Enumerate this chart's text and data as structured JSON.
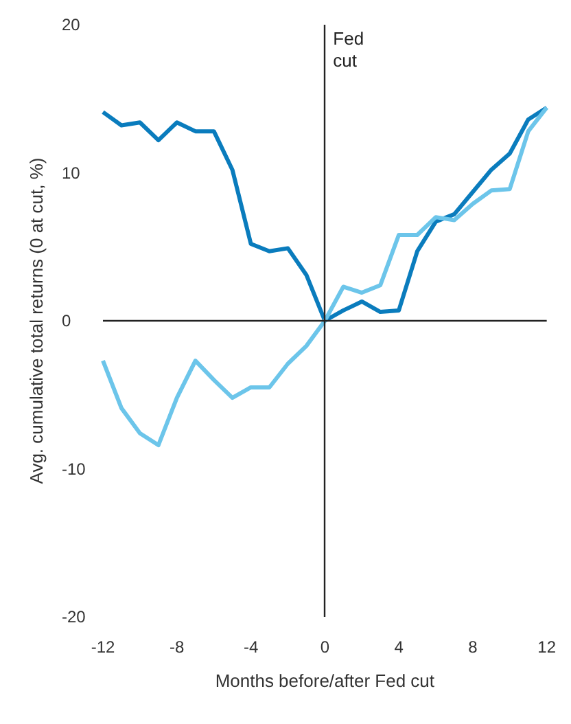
{
  "chart_data": {
    "type": "line",
    "xlabel": "Months before/after Fed cut",
    "ylabel": "Avg. cumulative total returns (0 at cut, %)",
    "x": [
      -12,
      -11,
      -10,
      -9,
      -8,
      -7,
      -6,
      -5,
      -4,
      -3,
      -2,
      -1,
      0,
      1,
      2,
      3,
      4,
      5,
      6,
      7,
      8,
      9,
      10,
      11,
      12
    ],
    "series": [
      {
        "color": "#0a7cbd",
        "values": [
          14.1,
          13.2,
          13.4,
          12.2,
          13.4,
          12.8,
          12.8,
          10.2,
          5.2,
          4.7,
          4.9,
          3.1,
          0,
          0.7,
          1.3,
          0.6,
          0.7,
          4.7,
          6.7,
          7.2,
          8.7,
          10.2,
          11.3,
          13.6,
          14.4
        ]
      },
      {
        "color": "#6cc5ea",
        "values": [
          -2.7,
          -5.9,
          -7.6,
          -8.4,
          -5.2,
          -2.7,
          -4.0,
          -5.2,
          -4.5,
          -4.5,
          -2.9,
          -1.7,
          0,
          2.3,
          1.9,
          2.4,
          5.8,
          5.8,
          7.0,
          6.8,
          7.9,
          8.8,
          8.9,
          12.8,
          14.4
        ]
      }
    ],
    "xlim": [
      -12,
      12
    ],
    "xticks": [
      -12,
      -8,
      -4,
      0,
      4,
      8,
      12
    ],
    "ylim": [
      -20,
      20
    ],
    "yticks": [
      -20,
      -10,
      0,
      10,
      20
    ],
    "grid": false,
    "marker": "none",
    "line_style": "solid",
    "ref_lines": [
      {
        "axis": "x",
        "value": 0,
        "label": "Fed cut",
        "color": "#222222"
      },
      {
        "axis": "y",
        "value": 0,
        "color": "#222222"
      }
    ]
  }
}
